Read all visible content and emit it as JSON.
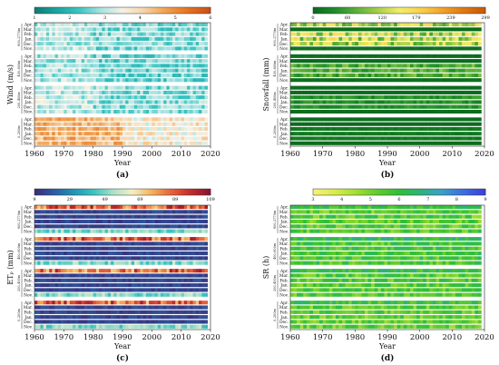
{
  "chart_data": [
    {
      "type": "heatmap",
      "panel_label": "(a)",
      "ylabel": "Wind (m/s)",
      "xlabel": "Year",
      "xlim": [
        1960,
        2020
      ],
      "x_ticks": [
        1960,
        1970,
        1980,
        1990,
        2000,
        2010,
        2020
      ],
      "colorbar_ticks": [
        1,
        2,
        3,
        4,
        5,
        6
      ],
      "colorbar_range": [
        1,
        6
      ],
      "colormap": [
        "#117c75",
        "#1aa6a2",
        "#3cc5c2",
        "#a9e3e1",
        "#f4f1e6",
        "#f7d3a5",
        "#f0a050",
        "#e67422",
        "#c9501a"
      ],
      "month_labels": [
        "Apr.",
        "Mar.",
        "Feb.",
        "Jan.",
        "Dec.",
        "Nov."
      ],
      "groups": [
        "600–2770m",
        "400–600m",
        "200–400m",
        "0–200m"
      ],
      "group_means": [
        2.6,
        2.5,
        2.7,
        3.6
      ]
    },
    {
      "type": "heatmap",
      "panel_label": "(b)",
      "ylabel": "Snowfall (mm)",
      "xlabel": "Year",
      "xlim": [
        1960,
        2020
      ],
      "x_ticks": [
        1960,
        1970,
        1980,
        1990,
        2000,
        2010,
        2020
      ],
      "colorbar_ticks": [
        0,
        60,
        120,
        179,
        239,
        299
      ],
      "colorbar_range": [
        0,
        299
      ],
      "colormap": [
        "#0b6b1d",
        "#1f8e2a",
        "#5bb13a",
        "#a6cf4a",
        "#f2ee6a",
        "#f8d24a",
        "#f3a32a",
        "#e07a12",
        "#c75a08"
      ],
      "month_labels": [
        "Apr.",
        "Mar.",
        "Feb.",
        "Jan.",
        "Dec.",
        "Nov."
      ],
      "groups": [
        "600–2770m",
        "400–600m",
        "200–400m",
        "0–200m"
      ],
      "group_means": [
        110,
        60,
        40,
        10
      ]
    },
    {
      "type": "heatmap",
      "panel_label": "(c)",
      "ylabel": "ETₚ (mm)",
      "xlabel": "Year",
      "xlim": [
        1960,
        2020
      ],
      "x_ticks": [
        1960,
        1970,
        1980,
        1990,
        2000,
        2010,
        2020
      ],
      "colorbar_ticks": [
        9,
        29,
        49,
        69,
        89,
        109
      ],
      "colorbar_range": [
        9,
        109
      ],
      "colormap": [
        "#3a2f79",
        "#2c5fa6",
        "#1f97b5",
        "#3bc3c0",
        "#a7e2c8",
        "#f3efc8",
        "#f4b35b",
        "#e8643a",
        "#c72d2b",
        "#8a1330"
      ],
      "month_labels": [
        "Apr.",
        "Mar.",
        "Feb.",
        "Jan.",
        "Dec.",
        "Nov."
      ],
      "groups": [
        "600–2770m",
        "400–600m",
        "200–400m",
        "0–200m"
      ],
      "group_means": [
        25,
        26,
        27,
        28
      ]
    },
    {
      "type": "heatmap",
      "panel_label": "(d)",
      "ylabel": "SR (h)",
      "xlabel": "Year",
      "xlim": [
        1960,
        2020
      ],
      "x_ticks": [
        1960,
        1970,
        1980,
        1990,
        2000,
        2010,
        2020
      ],
      "colorbar_ticks": [
        3,
        4,
        5,
        6,
        7,
        8,
        9
      ],
      "colorbar_range": [
        3,
        9
      ],
      "colormap": [
        "#f6f07a",
        "#d6ec4a",
        "#9fdd32",
        "#5fcb2e",
        "#2fbf38",
        "#2cb37c",
        "#3aa0c8",
        "#3c6fe0",
        "#3a42d8"
      ],
      "month_labels": [
        "Apr.",
        "Mar.",
        "Feb.",
        "Jan.",
        "Dec.",
        "Nov."
      ],
      "groups": [
        "600–2770m",
        "400–600m",
        "200–400m",
        "0–200m"
      ],
      "group_means": [
        5.4,
        5.6,
        5.5,
        5.3
      ]
    }
  ]
}
